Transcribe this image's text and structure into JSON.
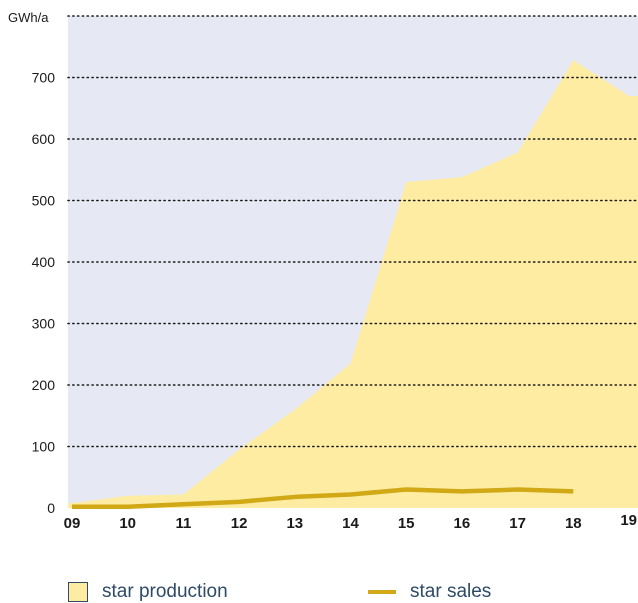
{
  "chart_data": {
    "type": "area",
    "ylabel": "GWh/a",
    "ylim": [
      0,
      800
    ],
    "yticks": [
      "0",
      "100",
      "200",
      "300",
      "400",
      "500",
      "600",
      "700"
    ],
    "categories": [
      "09",
      "10",
      "11",
      "12",
      "13",
      "14",
      "15",
      "16",
      "17",
      "18",
      "19"
    ],
    "grid": true,
    "legend_position": "bottom",
    "series": [
      {
        "name": "star production",
        "kind": "area",
        "values": [
          8,
          20,
          22,
          95,
          160,
          235,
          530,
          538,
          578,
          728,
          670
        ]
      },
      {
        "name": "star sales",
        "kind": "line",
        "values": [
          2,
          2,
          6,
          10,
          18,
          22,
          30,
          27,
          30,
          27,
          null
        ]
      }
    ]
  },
  "colors": {
    "plot_background": "#e6e9f3",
    "area_fill": "#feeca3",
    "sales_line": "#d1a816",
    "grid": "#1a1a1a",
    "legend_text": "#2e4a66"
  }
}
